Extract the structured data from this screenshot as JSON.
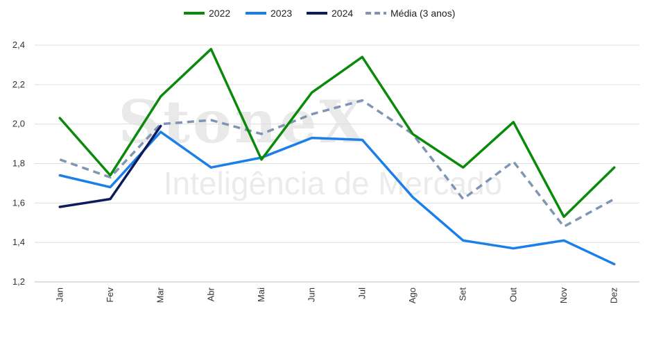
{
  "watermark": {
    "line1": "StoneX",
    "line2": "Inteligência de Mercado"
  },
  "chart_data": {
    "type": "line",
    "title": "",
    "xlabel": "",
    "ylabel": "",
    "categories": [
      "Jan",
      "Fev",
      "Mar",
      "Abr",
      "Mai",
      "Jun",
      "Jul",
      "Ago",
      "Set",
      "Out",
      "Nov",
      "Dez"
    ],
    "ylim": [
      1.2,
      2.4
    ],
    "yticks": [
      "1,2",
      "1,4",
      "1,6",
      "1,8",
      "2,0",
      "2,2",
      "2,4"
    ],
    "grid": true,
    "legend_position": "top-center",
    "series": [
      {
        "name": "2022",
        "color": "#0a8a0a",
        "dashed": false,
        "values": [
          2.03,
          1.74,
          2.14,
          2.38,
          1.82,
          2.16,
          2.34,
          1.95,
          1.78,
          2.01,
          1.53,
          1.78
        ]
      },
      {
        "name": "2023",
        "color": "#1a7fe8",
        "dashed": false,
        "values": [
          1.74,
          1.68,
          1.96,
          1.78,
          1.83,
          1.93,
          1.92,
          1.63,
          1.41,
          1.37,
          1.41,
          1.29
        ]
      },
      {
        "name": "2024",
        "color": "#0d1a5c",
        "dashed": false,
        "values": [
          1.58,
          1.62,
          1.99,
          null,
          null,
          null,
          null,
          null,
          null,
          null,
          null,
          null
        ]
      },
      {
        "name": "Média (3 anos)",
        "color": "#8094b3",
        "dashed": true,
        "values": [
          1.82,
          1.73,
          2.0,
          2.02,
          1.95,
          2.05,
          2.12,
          1.95,
          1.62,
          1.81,
          1.48,
          1.62
        ]
      }
    ]
  }
}
